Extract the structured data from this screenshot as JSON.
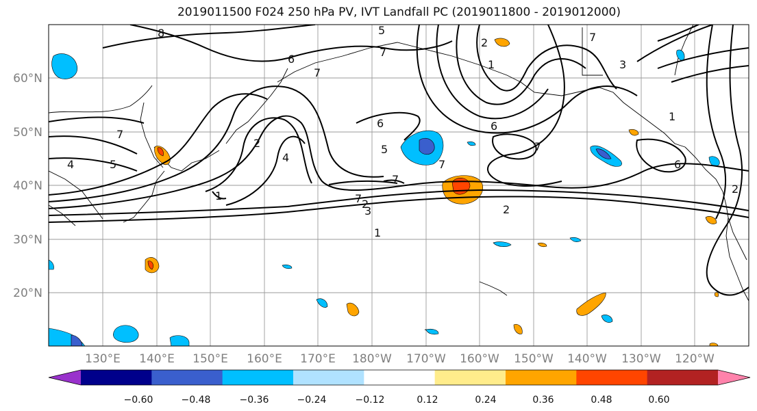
{
  "title": "2019011500 F024 250 hPa PV, IVT Landfall PC (2019011800 - 2019012000)",
  "lat_labels": [
    "60°N",
    "50°N",
    "40°N",
    "30°N",
    "20°N"
  ],
  "lon_labels": [
    "130°E",
    "140°E",
    "150°E",
    "160°E",
    "170°E",
    "180°W",
    "170°W",
    "160°W",
    "150°W",
    "140°W",
    "130°W",
    "120°W"
  ],
  "colorbar": {
    "tick_labels": [
      "−0.60",
      "−0.48",
      "−0.36",
      "−0.24",
      "−0.12",
      "0.12",
      "0.24",
      "0.36",
      "0.48",
      "0.60"
    ],
    "colors": [
      "#9932cc",
      "#00008b",
      "#3a5fcd",
      "#00bfff",
      "#b0e2ff",
      "#ffffff",
      "#ffec8b",
      "#ffa500",
      "#ff4500",
      "#b22222",
      "#ff82ab"
    ]
  },
  "contour_labels": [
    "8",
    "6",
    "7",
    "5",
    "2",
    "1",
    "4",
    "3",
    "2",
    "7",
    "4",
    "5",
    "7",
    "2",
    "7",
    "6",
    "5",
    "7",
    "6",
    "1",
    "7",
    "3",
    "1",
    "7",
    "6",
    "2",
    "1",
    "2",
    "7"
  ]
}
